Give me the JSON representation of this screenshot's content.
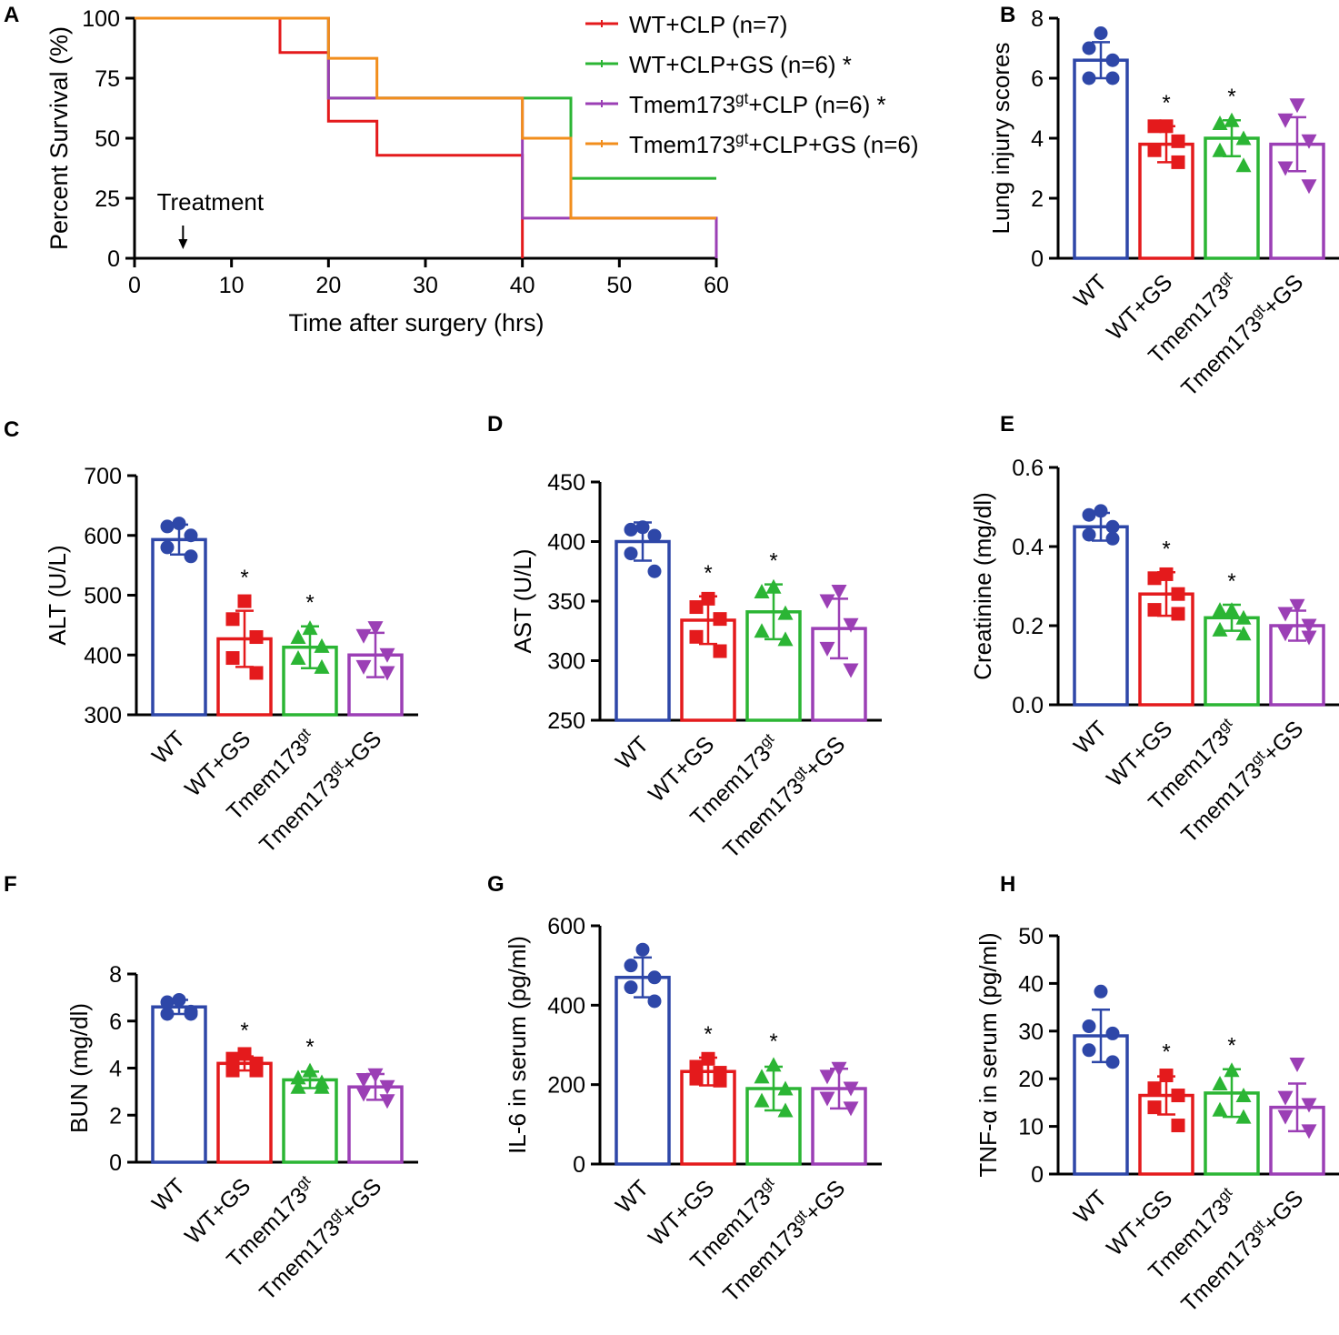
{
  "chart_data": [
    {
      "panel": "A",
      "type": "line",
      "subtype": "survival-step",
      "title": "",
      "xlabel": "Time after surgery (hrs)",
      "ylabel": "Percent Survival (%)",
      "xlim": [
        0,
        60
      ],
      "ylim": [
        0,
        100
      ],
      "xticks": [
        0,
        10,
        20,
        30,
        40,
        50,
        60
      ],
      "yticks": [
        0,
        25,
        50,
        75,
        100
      ],
      "series": [
        {
          "name": "WT+CLP (n=7)",
          "color": "#e41a1c",
          "steps": [
            [
              0,
              100
            ],
            [
              15,
              85.7
            ],
            [
              20,
              57.1
            ],
            [
              25,
              42.9
            ],
            [
              40,
              0
            ]
          ]
        },
        {
          "name": "WT+CLP+GS (n=6) *",
          "color": "#2bb534",
          "steps": [
            [
              0,
              100
            ],
            [
              20,
              66.7
            ],
            [
              45,
              33.3
            ],
            [
              60,
              33.3
            ]
          ]
        },
        {
          "name": "Tmem173gt+CLP (n=6) *",
          "color": "#9b3fb5",
          "steps": [
            [
              0,
              100
            ],
            [
              20,
              66.7
            ],
            [
              40,
              16.7
            ],
            [
              60,
              0
            ]
          ]
        },
        {
          "name": "Tmem173gt+CLP+GS (n=6)",
          "color": "#f28e1c",
          "steps": [
            [
              0,
              100
            ],
            [
              20,
              83.3
            ],
            [
              25,
              66.7
            ],
            [
              40,
              50
            ],
            [
              45,
              16.7
            ],
            [
              60,
              16.7
            ]
          ]
        }
      ],
      "legend": [
        {
          "color": "#e41a1c",
          "text": "WT+CLP (n=7)",
          "base": "",
          "sup": "",
          "rest": ""
        },
        {
          "color": "#2bb534",
          "text": "WT+CLP+GS (n=6) *",
          "base": "",
          "sup": "",
          "rest": ""
        },
        {
          "color": "#9b3fb5",
          "text": "",
          "base": "Tmem173",
          "sup": "gt",
          "rest": "+CLP (n=6) *"
        },
        {
          "color": "#f28e1c",
          "text": "",
          "base": "Tmem173",
          "sup": "gt",
          "rest": "+CLP+GS (n=6)"
        }
      ],
      "annotation": {
        "text": "Treatment",
        "x": 5
      }
    },
    {
      "panel": "B",
      "type": "bar",
      "ylabel": "Lung injury scores",
      "ylim": [
        0,
        8
      ],
      "yticks": [
        "0",
        "2",
        "4",
        "6",
        "8"
      ],
      "values": [
        6.6,
        3.8,
        4.0,
        3.8
      ],
      "errors": [
        0.6,
        0.6,
        0.6,
        0.9
      ],
      "significance": [
        "",
        "*",
        "*",
        ""
      ],
      "points": [
        [
          7.5,
          7.0,
          6.6,
          6.0,
          6.0
        ],
        [
          4.4,
          4.4,
          3.9,
          3.6,
          3.2
        ],
        [
          4.6,
          4.5,
          4.0,
          3.6,
          3.1
        ],
        [
          5.1,
          4.6,
          3.9,
          3.0,
          2.4
        ]
      ]
    },
    {
      "panel": "C",
      "type": "bar",
      "ylabel": "ALT (U/L)",
      "ylim": [
        300,
        700
      ],
      "yticks": [
        "300",
        "400",
        "500",
        "600",
        "700"
      ],
      "values": [
        593,
        427,
        413,
        400
      ],
      "errors": [
        25,
        47,
        35,
        37
      ],
      "significance": [
        "",
        "*",
        "*",
        ""
      ],
      "points": [
        [
          620,
          615,
          600,
          580,
          565
        ],
        [
          490,
          460,
          430,
          395,
          370
        ],
        [
          445,
          430,
          415,
          395,
          380
        ],
        [
          445,
          432,
          400,
          380,
          370
        ]
      ]
    },
    {
      "panel": "D",
      "type": "bar",
      "ylabel": "AST (U/L)",
      "ylim": [
        250,
        450
      ],
      "yticks": [
        "250",
        "300",
        "350",
        "400",
        "450"
      ],
      "values": [
        400,
        334,
        341,
        327
      ],
      "errors": [
        16,
        20,
        23,
        25
      ],
      "significance": [
        "",
        "*",
        "*",
        ""
      ],
      "points": [
        [
          412,
          410,
          405,
          390,
          375
        ],
        [
          352,
          345,
          335,
          320,
          308
        ],
        [
          362,
          358,
          340,
          325,
          318
        ],
        [
          358,
          350,
          330,
          310,
          292
        ]
      ]
    },
    {
      "panel": "E",
      "type": "bar",
      "ylabel": "Creatinine (mg/dl)",
      "ylim": [
        0,
        0.6
      ],
      "yticks": [
        "0.0",
        "0.2",
        "0.4",
        "0.6"
      ],
      "values": [
        0.45,
        0.28,
        0.22,
        0.2
      ],
      "errors": [
        0.035,
        0.055,
        0.033,
        0.038
      ],
      "significance": [
        "",
        "*",
        "*",
        ""
      ],
      "points": [
        [
          0.49,
          0.48,
          0.45,
          0.43,
          0.42
        ],
        [
          0.33,
          0.32,
          0.28,
          0.24,
          0.23
        ],
        [
          0.24,
          0.24,
          0.22,
          0.19,
          0.18
        ],
        [
          0.25,
          0.23,
          0.2,
          0.18,
          0.17
        ]
      ]
    },
    {
      "panel": "F",
      "type": "bar",
      "ylabel": "BUN (mg/dl)",
      "ylim": [
        0,
        8
      ],
      "yticks": [
        "0",
        "2",
        "4",
        "6",
        "8"
      ],
      "values": [
        6.6,
        4.2,
        3.5,
        3.2
      ],
      "errors": [
        0.3,
        0.3,
        0.35,
        0.55
      ],
      "significance": [
        "",
        "*",
        "*",
        ""
      ],
      "points": [
        [
          6.9,
          6.8,
          6.4,
          6.3,
          6.3
        ],
        [
          4.6,
          4.4,
          4.2,
          3.9,
          3.9
        ],
        [
          3.9,
          3.6,
          3.4,
          3.2,
          3.2
        ],
        [
          3.7,
          3.5,
          3.2,
          2.9,
          2.6
        ]
      ]
    },
    {
      "panel": "G",
      "type": "bar",
      "ylabel": "IL-6 in serum (pg/ml)",
      "ylim": [
        0,
        600
      ],
      "yticks": [
        "0",
        "200",
        "400",
        "600"
      ],
      "values": [
        470,
        233,
        190,
        190
      ],
      "errors": [
        50,
        35,
        55,
        50
      ],
      "significance": [
        "",
        "*",
        "*",
        ""
      ],
      "points": [
        [
          540,
          500,
          470,
          445,
          410
        ],
        [
          265,
          245,
          230,
          215,
          210
        ],
        [
          250,
          220,
          190,
          160,
          135
        ],
        [
          240,
          220,
          190,
          165,
          140
        ]
      ]
    },
    {
      "panel": "H",
      "type": "bar",
      "ylabel": "TNF-α in serum (pg/ml)",
      "ylim": [
        0,
        50
      ],
      "yticks": [
        "0",
        "10",
        "20",
        "30",
        "40",
        "50"
      ],
      "values": [
        29,
        16.5,
        17,
        14
      ],
      "errors": [
        5.5,
        4,
        5,
        5
      ],
      "significance": [
        "",
        "*",
        "*",
        ""
      ],
      "points": [
        [
          38.3,
          31,
          29.5,
          26,
          23.5
        ],
        [
          20.7,
          18,
          16.5,
          14,
          10.2
        ],
        [
          21.8,
          19,
          16.5,
          13.5,
          12
        ],
        [
          23,
          16,
          14.5,
          12,
          9
        ]
      ]
    }
  ],
  "categories": [
    {
      "base": "WT",
      "sup": "",
      "rest": ""
    },
    {
      "base": "WT+GS",
      "sup": "",
      "rest": ""
    },
    {
      "base": "Tmem173",
      "sup": "gt",
      "rest": ""
    },
    {
      "base": "Tmem173",
      "sup": "gt",
      "rest": "+GS"
    }
  ],
  "group_colors": [
    "#2e47a8",
    "#e41a1c",
    "#2bb534",
    "#9b3fb5"
  ],
  "group_markers": [
    "circle",
    "square",
    "triangle-up",
    "triangle-down"
  ]
}
